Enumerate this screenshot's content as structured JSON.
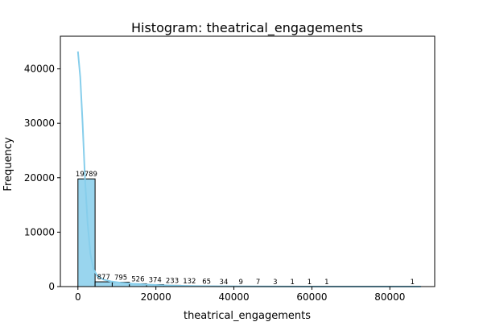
{
  "chart_data": {
    "type": "bar",
    "title": "Histogram: theatrical_engagements",
    "xlabel": "theatrical_engagements",
    "ylabel": "Frequency",
    "xlim": [
      -4500,
      91500
    ],
    "ylim": [
      0,
      46000
    ],
    "xticks": [
      0,
      20000,
      40000,
      60000,
      80000
    ],
    "yticks": [
      0,
      10000,
      20000,
      30000,
      40000
    ],
    "bin_edges": [
      0,
      4400,
      8800,
      13200,
      17600,
      22000,
      26400,
      30800,
      35200,
      39600,
      44000,
      48400,
      52800,
      57200,
      61600,
      66000,
      70400,
      74800,
      79200,
      83600,
      88000
    ],
    "counts": [
      19789,
      877,
      795,
      526,
      374,
      233,
      132,
      65,
      34,
      9,
      7,
      3,
      1,
      1,
      1,
      0,
      0,
      0,
      0,
      1
    ],
    "bar_color": "#87ceeb",
    "edge_color": "#000000",
    "kde_color": "#87ceeb",
    "kde": [
      [
        0,
        43200
      ],
      [
        600,
        38500
      ],
      [
        1200,
        30000
      ],
      [
        1800,
        20000
      ],
      [
        2500,
        11500
      ],
      [
        3200,
        6000
      ],
      [
        4000,
        3200
      ],
      [
        5000,
        1900
      ],
      [
        6500,
        1300
      ],
      [
        8500,
        950
      ],
      [
        11000,
        700
      ],
      [
        14000,
        520
      ],
      [
        17500,
        380
      ],
      [
        21000,
        260
      ],
      [
        25000,
        170
      ],
      [
        30000,
        100
      ],
      [
        36000,
        55
      ],
      [
        42000,
        30
      ],
      [
        50000,
        15
      ],
      [
        60000,
        8
      ],
      [
        70000,
        4
      ],
      [
        80000,
        2
      ],
      [
        88000,
        1
      ]
    ]
  }
}
